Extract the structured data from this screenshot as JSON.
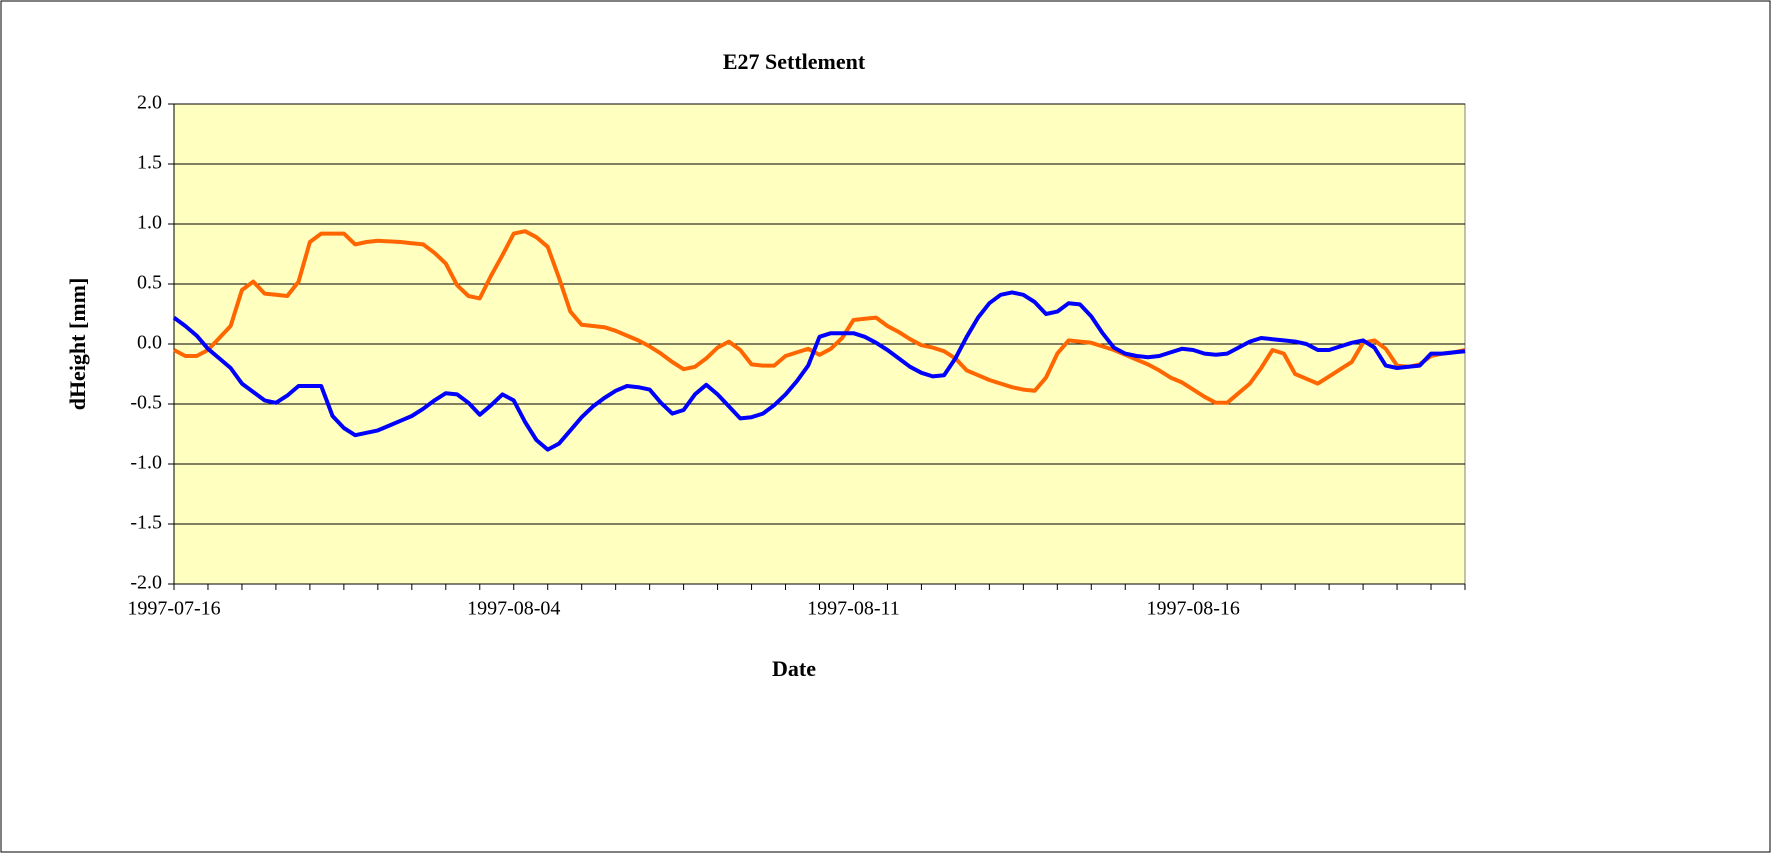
{
  "chart_data": {
    "type": "line",
    "title": "E27 Settlement",
    "x_label": "Date",
    "y_label": "dHeight [mm]",
    "categories": [
      "1997-07-16",
      null,
      null,
      null,
      null,
      null,
      null,
      null,
      null,
      null,
      null,
      null,
      null,
      null,
      null,
      null,
      null,
      null,
      null,
      null,
      null,
      null,
      null,
      null,
      null,
      null,
      null,
      null,
      null,
      null,
      "1997-08-04",
      null,
      null,
      null,
      null,
      null,
      null,
      null,
      null,
      null,
      null,
      null,
      null,
      null,
      null,
      null,
      null,
      null,
      null,
      null,
      null,
      null,
      null,
      null,
      null,
      null,
      null,
      null,
      null,
      null,
      "1997-08-11",
      null,
      null,
      null,
      null,
      null,
      null,
      null,
      null,
      null,
      null,
      null,
      null,
      null,
      null,
      null,
      null,
      null,
      null,
      null,
      null,
      null,
      null,
      null,
      null,
      null,
      null,
      null,
      null,
      null,
      "1997-08-16",
      null,
      null,
      null,
      null,
      null,
      null,
      null,
      null,
      null,
      null,
      null,
      null,
      null,
      null,
      null,
      null,
      null,
      null,
      null,
      null,
      null,
      null,
      null,
      null
    ],
    "series": [
      {
        "color": "#ff6600",
        "values": [
          -0.05,
          -0.1,
          -0.1,
          -0.05,
          0.05,
          0.15,
          0.45,
          0.52,
          0.42,
          0.41,
          0.4,
          0.52,
          0.85,
          0.92,
          0.92,
          0.92,
          0.83,
          0.85,
          0.86,
          0.855,
          0.85,
          0.84,
          0.83,
          0.76,
          0.67,
          0.49,
          0.4,
          0.38,
          0.57,
          0.74,
          0.92,
          0.94,
          0.89,
          0.81,
          0.55,
          0.27,
          0.16,
          0.15,
          0.14,
          0.11,
          0.07,
          0.03,
          -0.02,
          -0.08,
          -0.15,
          -0.21,
          -0.19,
          -0.12,
          -0.03,
          0.02,
          -0.05,
          -0.17,
          -0.18,
          -0.18,
          -0.1,
          -0.07,
          -0.04,
          -0.09,
          -0.04,
          0.05,
          0.2,
          0.21,
          0.22,
          0.15,
          0.1,
          0.04,
          -0.01,
          -0.03,
          -0.06,
          -0.12,
          -0.22,
          -0.26,
          -0.3,
          -0.33,
          -0.36,
          -0.38,
          -0.39,
          -0.28,
          -0.08,
          0.03,
          0.02,
          0.01,
          -0.02,
          -0.05,
          -0.09,
          -0.13,
          -0.17,
          -0.22,
          -0.28,
          -0.32,
          -0.38,
          -0.44,
          -0.49,
          -0.49,
          -0.41,
          -0.33,
          -0.2,
          -0.05,
          -0.08,
          -0.25,
          -0.29,
          -0.33,
          -0.27,
          -0.21,
          -0.15,
          0.01,
          0.03,
          -0.04,
          -0.18,
          -0.19,
          -0.17,
          -0.1,
          -0.08,
          -0.07,
          -0.05
        ]
      },
      {
        "color": "#0000ff",
        "values": [
          0.22,
          0.15,
          0.07,
          -0.04,
          -0.12,
          -0.2,
          -0.33,
          -0.4,
          -0.47,
          -0.49,
          -0.43,
          -0.35,
          -0.35,
          -0.35,
          -0.6,
          -0.7,
          -0.76,
          -0.74,
          -0.72,
          -0.68,
          -0.64,
          -0.6,
          -0.54,
          -0.47,
          -0.41,
          -0.42,
          -0.49,
          -0.59,
          -0.51,
          -0.42,
          -0.47,
          -0.65,
          -0.8,
          -0.88,
          -0.83,
          -0.72,
          -0.61,
          -0.52,
          -0.45,
          -0.39,
          -0.35,
          -0.36,
          -0.38,
          -0.49,
          -0.58,
          -0.55,
          -0.42,
          -0.34,
          -0.42,
          -0.52,
          -0.62,
          -0.61,
          -0.58,
          -0.51,
          -0.42,
          -0.31,
          -0.18,
          0.06,
          0.09,
          0.09,
          0.09,
          0.06,
          0.01,
          -0.05,
          -0.12,
          -0.19,
          -0.24,
          -0.27,
          -0.26,
          -0.12,
          0.06,
          0.22,
          0.34,
          0.41,
          0.43,
          0.41,
          0.35,
          0.25,
          0.27,
          0.34,
          0.33,
          0.23,
          0.09,
          -0.03,
          -0.08,
          -0.1,
          -0.11,
          -0.1,
          -0.07,
          -0.04,
          -0.05,
          -0.08,
          -0.09,
          -0.08,
          -0.03,
          0.02,
          0.05,
          0.04,
          0.03,
          0.02,
          0.0,
          -0.05,
          -0.05,
          -0.02,
          0.01,
          0.03,
          -0.03,
          -0.18,
          -0.2,
          -0.19,
          -0.18,
          -0.08,
          -0.08,
          -0.07,
          -0.06
        ]
      }
    ],
    "ylim": [
      -2,
      2
    ],
    "yticks": [
      {
        "value": -2,
        "label": "-2.0"
      },
      {
        "value": -1.5,
        "label": "-1.5"
      },
      {
        "value": -1,
        "label": "-1.0"
      },
      {
        "value": -0.5,
        "label": "-0.5"
      },
      {
        "value": 0,
        "label": "0.0"
      },
      {
        "value": 0.5,
        "label": "0.5"
      },
      {
        "value": 1,
        "label": "1.0"
      },
      {
        "value": 1.5,
        "label": "1.5"
      },
      {
        "value": 2,
        "label": "2.0"
      }
    ],
    "grid": true,
    "background": "#ffffc0"
  }
}
